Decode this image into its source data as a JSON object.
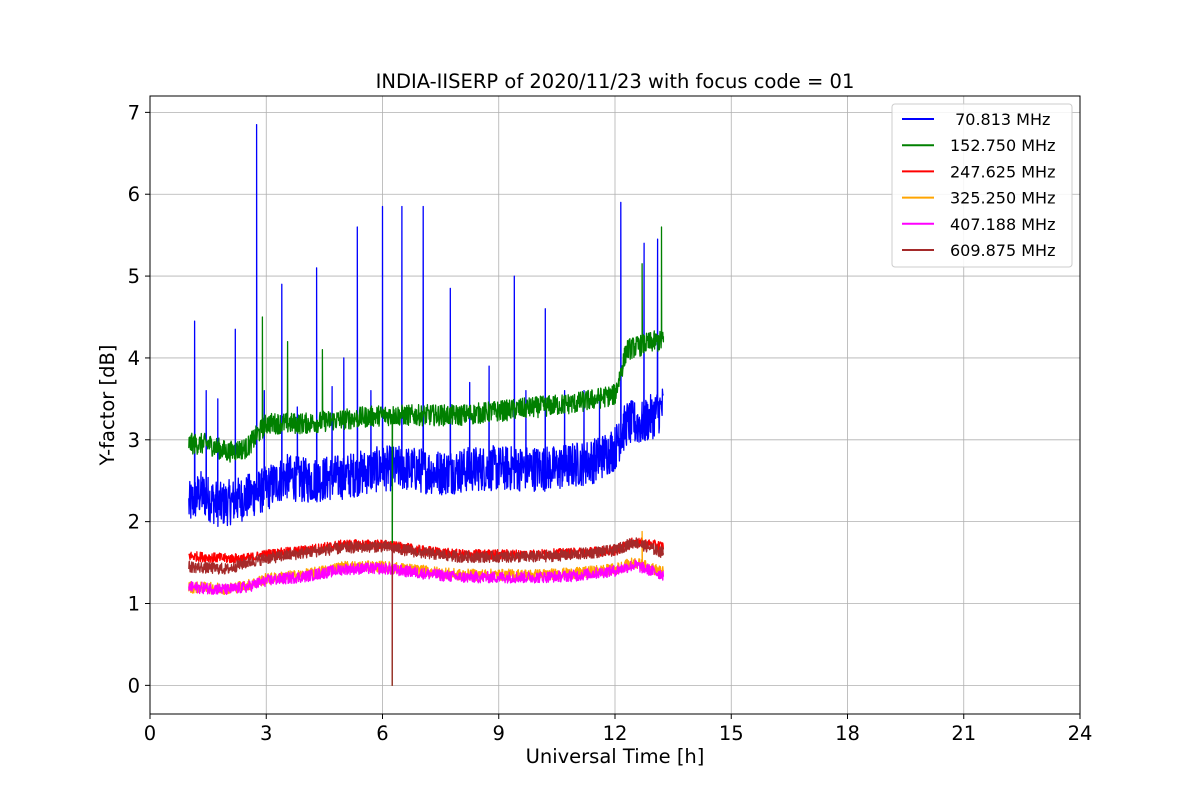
{
  "chart_data": {
    "type": "line",
    "title": "INDIA-IISERP of 2020/11/23 with focus code = 01",
    "xlabel": "Universal Time [h]",
    "ylabel": "Y-factor [dB]",
    "xlim": [
      0,
      24
    ],
    "ylim": [
      -0.35,
      7.2
    ],
    "xticks": [
      0,
      3,
      6,
      9,
      12,
      15,
      18,
      21,
      24
    ],
    "yticks": [
      0,
      1,
      2,
      3,
      4,
      5,
      6,
      7
    ],
    "grid": true,
    "legend_position": "top-right",
    "series": [
      {
        "name": " 70.813 MHz",
        "color": "#0000ff",
        "base": [
          [
            1.0,
            2.2
          ],
          [
            1.3,
            2.35
          ],
          [
            1.8,
            2.2
          ],
          [
            2.5,
            2.3
          ],
          [
            3.0,
            2.4
          ],
          [
            3.5,
            2.55
          ],
          [
            4.0,
            2.5
          ],
          [
            5.0,
            2.55
          ],
          [
            6.0,
            2.65
          ],
          [
            6.5,
            2.65
          ],
          [
            7.5,
            2.6
          ],
          [
            8.5,
            2.65
          ],
          [
            9.5,
            2.65
          ],
          [
            10.5,
            2.65
          ],
          [
            11.5,
            2.75
          ],
          [
            12.0,
            2.9
          ],
          [
            12.3,
            3.2
          ],
          [
            12.7,
            3.2
          ],
          [
            13.0,
            3.3
          ],
          [
            13.25,
            3.4
          ]
        ],
        "noise": 0.28,
        "spikes": [
          [
            1.15,
            4.45
          ],
          [
            1.45,
            3.6
          ],
          [
            1.75,
            3.5
          ],
          [
            2.2,
            4.35
          ],
          [
            2.75,
            6.85
          ],
          [
            2.95,
            3.6
          ],
          [
            3.4,
            4.9
          ],
          [
            3.8,
            3.4
          ],
          [
            4.3,
            5.1
          ],
          [
            4.7,
            3.65
          ],
          [
            5.0,
            4.0
          ],
          [
            5.35,
            5.6
          ],
          [
            5.7,
            3.6
          ],
          [
            6.0,
            5.85
          ],
          [
            6.5,
            5.85
          ],
          [
            7.05,
            5.85
          ],
          [
            7.75,
            4.85
          ],
          [
            8.25,
            3.7
          ],
          [
            8.75,
            3.9
          ],
          [
            9.4,
            5.0
          ],
          [
            9.7,
            3.6
          ],
          [
            10.2,
            4.6
          ],
          [
            10.7,
            3.6
          ],
          [
            11.2,
            3.6
          ],
          [
            11.6,
            3.5
          ],
          [
            12.15,
            5.9
          ],
          [
            12.75,
            5.4
          ],
          [
            13.1,
            5.45
          ]
        ]
      },
      {
        "name": "152.750 MHz",
        "color": "#008000",
        "base": [
          [
            1.0,
            2.95
          ],
          [
            1.5,
            2.95
          ],
          [
            2.0,
            2.85
          ],
          [
            2.5,
            2.9
          ],
          [
            3.0,
            3.2
          ],
          [
            4.0,
            3.2
          ],
          [
            5.0,
            3.25
          ],
          [
            6.0,
            3.3
          ],
          [
            7.0,
            3.3
          ],
          [
            8.0,
            3.3
          ],
          [
            9.0,
            3.35
          ],
          [
            10.0,
            3.4
          ],
          [
            11.0,
            3.45
          ],
          [
            12.0,
            3.55
          ],
          [
            12.3,
            4.1
          ],
          [
            13.0,
            4.2
          ],
          [
            13.25,
            4.2
          ]
        ],
        "noise": 0.13,
        "spikes": [
          [
            2.9,
            4.5
          ],
          [
            3.55,
            4.2
          ],
          [
            4.45,
            4.1
          ],
          [
            6.25,
            1.55
          ],
          [
            6.25,
            0.0
          ],
          [
            12.7,
            5.15
          ],
          [
            13.2,
            5.6
          ]
        ]
      },
      {
        "name": "247.625 MHz",
        "color": "#ff0000",
        "base": [
          [
            1.0,
            1.58
          ],
          [
            2.0,
            1.55
          ],
          [
            2.5,
            1.55
          ],
          [
            3.0,
            1.6
          ],
          [
            4.0,
            1.65
          ],
          [
            5.0,
            1.72
          ],
          [
            6.0,
            1.72
          ],
          [
            7.0,
            1.65
          ],
          [
            8.0,
            1.6
          ],
          [
            9.0,
            1.6
          ],
          [
            10.0,
            1.6
          ],
          [
            11.0,
            1.62
          ],
          [
            12.0,
            1.65
          ],
          [
            12.5,
            1.75
          ],
          [
            13.25,
            1.7
          ]
        ],
        "noise": 0.06,
        "spikes": []
      },
      {
        "name": "325.250 MHz",
        "color": "#ffa500",
        "base": [
          [
            1.0,
            1.2
          ],
          [
            2.0,
            1.18
          ],
          [
            2.5,
            1.22
          ],
          [
            3.0,
            1.3
          ],
          [
            4.0,
            1.35
          ],
          [
            5.0,
            1.45
          ],
          [
            6.0,
            1.45
          ],
          [
            7.0,
            1.4
          ],
          [
            8.0,
            1.35
          ],
          [
            9.0,
            1.35
          ],
          [
            10.0,
            1.35
          ],
          [
            11.0,
            1.37
          ],
          [
            12.0,
            1.42
          ],
          [
            12.5,
            1.5
          ],
          [
            13.25,
            1.38
          ]
        ],
        "noise": 0.07,
        "spikes": [
          [
            12.7,
            1.88
          ]
        ]
      },
      {
        "name": "407.188 MHz",
        "color": "#ff00ff",
        "base": [
          [
            1.0,
            1.2
          ],
          [
            2.0,
            1.17
          ],
          [
            2.5,
            1.2
          ],
          [
            3.0,
            1.28
          ],
          [
            4.0,
            1.33
          ],
          [
            5.0,
            1.42
          ],
          [
            6.0,
            1.43
          ],
          [
            7.0,
            1.37
          ],
          [
            8.0,
            1.32
          ],
          [
            9.0,
            1.32
          ],
          [
            10.0,
            1.32
          ],
          [
            11.0,
            1.34
          ],
          [
            12.0,
            1.4
          ],
          [
            12.5,
            1.47
          ],
          [
            13.25,
            1.35
          ]
        ],
        "noise": 0.07,
        "spikes": []
      },
      {
        "name": "609.875 MHz",
        "color": "#a52a2a",
        "base": [
          [
            1.0,
            1.45
          ],
          [
            2.0,
            1.42
          ],
          [
            2.5,
            1.5
          ],
          [
            3.0,
            1.55
          ],
          [
            4.0,
            1.62
          ],
          [
            5.0,
            1.68
          ],
          [
            6.0,
            1.7
          ],
          [
            7.0,
            1.62
          ],
          [
            8.0,
            1.57
          ],
          [
            9.0,
            1.57
          ],
          [
            10.0,
            1.57
          ],
          [
            11.0,
            1.6
          ],
          [
            12.0,
            1.65
          ],
          [
            12.5,
            1.75
          ],
          [
            13.25,
            1.62
          ]
        ],
        "noise": 0.07,
        "spikes": [
          [
            6.25,
            0.0
          ]
        ]
      }
    ]
  }
}
